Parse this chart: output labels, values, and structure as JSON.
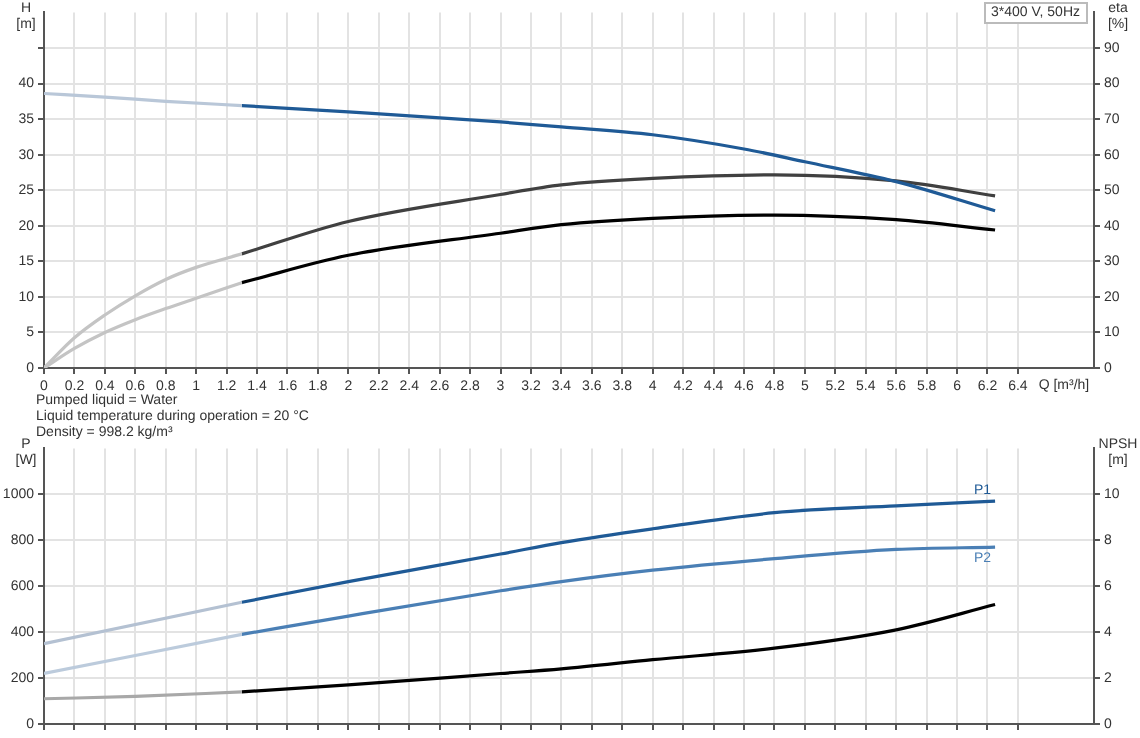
{
  "chart_data": [
    {
      "type": "line",
      "xlabel": "Q [m³/h]",
      "ylabel": "H [m]",
      "y2label": "eta [%]",
      "xlim": [
        0,
        6.9
      ],
      "xticks": [
        0,
        0.2,
        0.4,
        0.6,
        0.8,
        1.0,
        1.2,
        1.4,
        1.6,
        1.8,
        2.0,
        2.2,
        2.4,
        2.6,
        2.8,
        3.0,
        3.2,
        3.4,
        3.6,
        3.8,
        4.0,
        4.2,
        4.4,
        4.6,
        4.8,
        5.0,
        5.2,
        5.4,
        5.6,
        5.8,
        6.0,
        6.2,
        6.4
      ],
      "ylim": [
        0,
        50
      ],
      "yticks": [
        0,
        5,
        10,
        15,
        20,
        25,
        30,
        35,
        40,
        {
          "value": 45,
          "label": null
        }
      ],
      "y2lim": [
        0,
        100
      ],
      "y2ticks": [
        0,
        10,
        20,
        30,
        40,
        50,
        60,
        70,
        80,
        90
      ],
      "grid": true,
      "marker": "none",
      "annotations": [
        "3*400 V, 50Hz",
        "Pumped liquid = Water",
        "Liquid temperature during operation = 20 °C",
        "Density = 998.2 kg/m³"
      ],
      "series": [
        {
          "color": "#b9c7d8",
          "x": [
            0,
            0.4,
            0.8,
            1.3
          ],
          "values": [
            38.6,
            38.1,
            37.5,
            36.9
          ]
        },
        {
          "color": "#1f5a96",
          "x": [
            1.3,
            2.0,
            3.0,
            3.4,
            4.0,
            4.6,
            5.0,
            5.6,
            6.25
          ],
          "values": [
            36.9,
            36.0,
            34.6,
            33.9,
            32.8,
            30.8,
            29.0,
            26.2,
            22.1
          ]
        },
        {
          "color": "#c4c4c4",
          "axis": "y2",
          "x": [
            0,
            0.2,
            0.4,
            0.6,
            0.8,
            1.0,
            1.3
          ],
          "values": [
            0,
            8.5,
            14.9,
            20.3,
            24.9,
            28.3,
            32.1
          ]
        },
        {
          "color": "#404040",
          "axis": "y2",
          "x": [
            1.3,
            2.0,
            3.0,
            3.4,
            4.0,
            4.8,
            5.6,
            6.25
          ],
          "values": [
            32.1,
            41.2,
            48.8,
            51.5,
            53.3,
            54.3,
            52.6,
            48.4
          ]
        },
        {
          "color": "#c4c4c4",
          "axis": "y2",
          "x": [
            0,
            0.2,
            0.4,
            0.6,
            0.8,
            1.0,
            1.3
          ],
          "values": [
            0,
            5.5,
            10,
            13.6,
            16.7,
            19.6,
            24
          ]
        },
        {
          "color": "#000000",
          "axis": "y2",
          "x": [
            1.3,
            2.0,
            3.0,
            3.4,
            4.0,
            4.8,
            5.6,
            6.25
          ],
          "values": [
            24,
            31.7,
            37.9,
            40.3,
            42.1,
            43,
            41.7,
            38.8
          ]
        }
      ]
    },
    {
      "type": "line",
      "ylabel": "P [W]",
      "y2label": "NPSH [m]",
      "xlim": [
        0,
        6.9
      ],
      "xticks": [
        0,
        0.2,
        0.4,
        0.6,
        0.8,
        1.0,
        1.2,
        1.4,
        1.6,
        1.8,
        2.0,
        2.2,
        2.4,
        2.6,
        2.8,
        3.0,
        3.2,
        3.4,
        3.6,
        3.8,
        4.0,
        4.2,
        4.4,
        4.6,
        4.8,
        5.0,
        5.2,
        5.4,
        5.6,
        5.8,
        6.0,
        6.2,
        6.4
      ],
      "ylim": [
        0,
        1200
      ],
      "yticks": [
        0,
        200,
        400,
        600,
        800,
        1000
      ],
      "y2lim": [
        0,
        12
      ],
      "y2ticks": [
        0,
        2,
        4,
        6,
        8,
        10
      ],
      "grid": true,
      "marker": "none",
      "tick_labels": "y",
      "series": [
        {
          "color": "#b4c1d2",
          "x": [
            0,
            1.3
          ],
          "values": [
            350,
            530
          ]
        },
        {
          "name": "P1",
          "color": "#1f5a96",
          "x": [
            1.3,
            2.0,
            3.0,
            3.4,
            4.0,
            4.8,
            5.6,
            6.25
          ],
          "values": [
            530,
            620,
            740,
            790,
            850,
            920,
            950,
            970
          ]
        },
        {
          "color": "#bccbdc",
          "x": [
            0,
            1.3
          ],
          "values": [
            220,
            390
          ]
        },
        {
          "name": "P2",
          "color": "#4a7fb5",
          "x": [
            1.3,
            2.0,
            3.0,
            3.4,
            4.0,
            4.8,
            5.6,
            6.25
          ],
          "values": [
            390,
            470,
            580,
            620,
            670,
            720,
            760,
            770
          ]
        },
        {
          "color": "#a8a8a8",
          "axis": "y2",
          "x": [
            0,
            0.6,
            1.3
          ],
          "values": [
            1.1,
            1.2,
            1.4
          ]
        },
        {
          "color": "#000000",
          "axis": "y2",
          "x": [
            1.3,
            2.0,
            3.0,
            3.4,
            4.0,
            4.8,
            5.6,
            6.25
          ],
          "values": [
            1.4,
            1.7,
            2.2,
            2.4,
            2.8,
            3.3,
            4.1,
            5.2
          ]
        }
      ]
    }
  ]
}
